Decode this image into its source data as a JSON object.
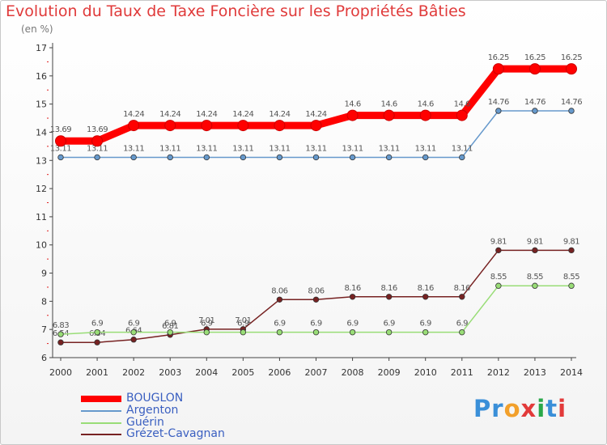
{
  "title": "Evolution du Taux de Taxe Foncière sur les Propriétés Bâties",
  "unit": "(en %)",
  "logo": "Proxiti",
  "colors": {
    "title": "#e03a3a",
    "axis": "#444444",
    "grid": "#d9d9d9",
    "tick_red": "#e02020"
  },
  "chart_data": {
    "type": "line",
    "title": "Evolution du Taux de Taxe Foncière sur les Propriétés Bâties",
    "ylabel": "(en %)",
    "xlabel": "",
    "ylim": [
      6,
      17
    ],
    "yticks": [
      "6",
      "7",
      "8",
      "9",
      "10",
      "11",
      "12",
      "13",
      "14",
      "15",
      "16",
      "17"
    ],
    "categories": [
      "2000",
      "2001",
      "2002",
      "2003",
      "2004",
      "2005",
      "2006",
      "2007",
      "2008",
      "2009",
      "2010",
      "2011",
      "2012",
      "2013",
      "2014"
    ],
    "series": [
      {
        "name": "BOUGLON",
        "color": "#ff0000",
        "width": 9,
        "values": [
          13.69,
          13.69,
          14.24,
          14.24,
          14.24,
          14.24,
          14.24,
          14.24,
          14.6,
          14.6,
          14.6,
          14.6,
          16.25,
          16.25,
          16.25
        ],
        "labels": [
          "13.69",
          "13.69",
          "14.24",
          "14.24",
          "14.24",
          "14.24",
          "14.24",
          "14.24",
          "14.6",
          "14.6",
          "14.6",
          "14.6",
          "16.25",
          "16.25",
          "16.25"
        ]
      },
      {
        "name": "Argenton",
        "color": "#6699cc",
        "width": 1.5,
        "values": [
          13.11,
          13.11,
          13.11,
          13.11,
          13.11,
          13.11,
          13.11,
          13.11,
          13.11,
          13.11,
          13.11,
          13.11,
          14.76,
          14.76,
          14.76
        ],
        "labels": [
          "13.11",
          "13.11",
          "13.11",
          "13.11",
          "13.11",
          "13.11",
          "13.11",
          "13.11",
          "13.11",
          "13.11",
          "13.11",
          "13.11",
          "14.76",
          "14.76",
          "14.76"
        ]
      },
      {
        "name": "Guérin",
        "color": "#99dd77",
        "width": 1.5,
        "values": [
          6.83,
          6.9,
          6.9,
          6.9,
          6.9,
          6.9,
          6.9,
          6.9,
          6.9,
          6.9,
          6.9,
          6.9,
          8.55,
          8.55,
          8.55
        ],
        "labels": [
          "6.83",
          "6.9",
          "6.9",
          "6.9",
          "6.9",
          "6.9",
          "6.9",
          "6.9",
          "6.9",
          "6.9",
          "6.9",
          "6.9",
          "8.55",
          "8.55",
          "8.55"
        ]
      },
      {
        "name": "Grézet-Cavagnan",
        "color": "#772222",
        "width": 1.5,
        "values": [
          6.54,
          6.54,
          6.64,
          6.81,
          7.01,
          7.01,
          8.06,
          8.06,
          8.16,
          8.16,
          8.16,
          8.16,
          9.81,
          9.81,
          9.81
        ],
        "labels": [
          "6.54",
          "6.54",
          "6.64",
          "6.81",
          "7.01",
          "7.01",
          "8.06",
          "8.06",
          "8.16",
          "8.16",
          "8.16",
          "8.16",
          "9.81",
          "9.81",
          "9.81"
        ]
      }
    ],
    "legend_position": "bottom-left",
    "grid": false
  }
}
